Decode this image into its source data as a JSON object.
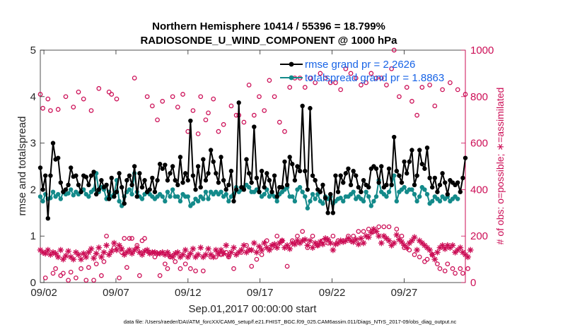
{
  "chart_data": {
    "type": "line",
    "title": "Northern Hemisphere 10414 / 55396 = 18.799%",
    "subtitle": "RADIOSONDE_U_WIND_COMPONENT @ 1000 hPa",
    "xlabel": "Sep.01,2017 00:00:00 start",
    "ylabel": "rmse and totalspread",
    "ylabel_right": "# of obs: o=possible; ∗=assimilated",
    "x_ticks": [
      "09/02",
      "09/07",
      "09/12",
      "09/17",
      "09/22",
      "09/27"
    ],
    "x_tick_days": [
      2,
      7,
      12,
      17,
      22,
      27
    ],
    "y_ticks": [
      "0",
      "1",
      "2",
      "3",
      "4",
      "5"
    ],
    "y_right_ticks": [
      "0",
      "200",
      "400",
      "600",
      "800",
      "1000"
    ],
    "xlim": [
      1.75,
      31.25
    ],
    "ylim": [
      0,
      5
    ],
    "ylim_right": [
      0,
      1000
    ],
    "footnote": "data file: /Users/raeder/DAI/ATM_forcXX/CAM6_setup/f.e21.FHIST_BGC.f09_025.CAM6assim.011/Diags_NTrS_2017-09/obs_diag_output.nc",
    "colors": {
      "rmse": "#000000",
      "spread": "#138a8a",
      "obs": "#cc0e56",
      "legend_text": "#1763e6",
      "axis": "#262626"
    },
    "series": [
      {
        "name": "rmse grand pr = 2.2626",
        "values": [
          2.47,
          2.0,
          2.3,
          1.38,
          2.3,
          3.0,
          2.65,
          2.68,
          2.15,
          1.95,
          2.0,
          2.1,
          2.47,
          2.28,
          2.3,
          2.1,
          1.95,
          2.3,
          2.27,
          2.1,
          2.3,
          2.38,
          1.9,
          2.0,
          2.2,
          2.05,
          2.1,
          1.8,
          2.25,
          1.85,
          1.95,
          2.35,
          2.05,
          1.7,
          2.2,
          2.3,
          2.1,
          2.5,
          1.85,
          2.35,
          2.05,
          2.2,
          1.95,
          2.0,
          2.25,
          1.95,
          2.2,
          2.55,
          2.45,
          2.53,
          2.2,
          2.35,
          2.5,
          2.2,
          2.1,
          2.7,
          2.15,
          2.35,
          2.2,
          3.48,
          2.3,
          2.0,
          2.5,
          2.05,
          2.65,
          2.2,
          2.35,
          2.85,
          2.6,
          2.35,
          2.15,
          2.7,
          2.2,
          2.0,
          2.1,
          2.4,
          1.75,
          2.0,
          3.87,
          2.05,
          2.0,
          2.65,
          2.35,
          2.15,
          3.35,
          2.25,
          1.95,
          2.4,
          2.05,
          2.35,
          2.2,
          1.95,
          2.3,
          1.85,
          2.05,
          2.05,
          2.6,
          2.1,
          2.7,
          2.55,
          2.2,
          2.5,
          2.4,
          3.8,
          2.4,
          2.0,
          3.75,
          2.3,
          2.2,
          2.0,
          1.95,
          2.1,
          1.82,
          1.5,
          1.9,
          1.5,
          2.3,
          1.95,
          2.3,
          2.15,
          2.35,
          2.45,
          2.1,
          2.4,
          2.3,
          2.05,
          1.95,
          2.2,
          2.1,
          2.05,
          2.45,
          2.5,
          2.45,
          2.15,
          2.5,
          2.05,
          2.1,
          2.45,
          2.1,
          3.13,
          2.4,
          2.3,
          2.15,
          2.6,
          2.35,
          2.6,
          2.85,
          2.1,
          2.3,
          2.85,
          2.55,
          2.45,
          2.9,
          2.25,
          2.05,
          2.25,
          1.95,
          2.1,
          2.35,
          2.15,
          1.9,
          2.2,
          2.15,
          2.1,
          2.15,
          1.95,
          2.25,
          2.68
        ],
        "color": "#000000"
      },
      {
        "name": "totalspread grand pr = 1.8863",
        "values": [
          1.85,
          1.75,
          1.9,
          1.8,
          1.82,
          1.95,
          1.85,
          1.9,
          1.8,
          1.95,
          1.9,
          1.92,
          2.0,
          1.88,
          1.95,
          1.9,
          1.95,
          2.0,
          1.9,
          1.85,
          1.95,
          2.0,
          2.35,
          1.95,
          2.05,
          2.0,
          1.8,
          1.95,
          1.85,
          1.9,
          2.2,
          1.75,
          1.65,
          1.85,
          1.95,
          2.0,
          1.9,
          2.35,
          1.95,
          1.85,
          1.8,
          1.9,
          1.95,
          1.9,
          1.85,
          1.8,
          1.85,
          1.9,
          1.85,
          1.75,
          1.95,
          1.85,
          2.0,
          1.85,
          1.85,
          1.75,
          1.9,
          1.85,
          1.85,
          1.65,
          1.7,
          1.8,
          1.75,
          1.85,
          1.8,
          1.95,
          1.8,
          1.95,
          1.9,
          1.95,
          1.9,
          1.95,
          1.85,
          1.9,
          1.75,
          1.85,
          1.9,
          2.05,
          1.95,
          2.0,
          2.05,
          2.1,
          2.05,
          1.95,
          1.95,
          2.0,
          1.95,
          1.85,
          1.9,
          2.0,
          1.85,
          1.9,
          1.85,
          1.75,
          1.9,
          1.95,
          2.0,
          2.05,
          1.85,
          1.85,
          1.75,
          2.0,
          2.05,
          1.95,
          1.85,
          1.6,
          1.75,
          1.9,
          1.8,
          1.9,
          1.75,
          1.7,
          1.85,
          1.8,
          1.85,
          1.7,
          1.75,
          1.8,
          1.82,
          1.75,
          1.85,
          1.85,
          1.9,
          1.95,
          1.8,
          1.85,
          1.8,
          1.75,
          1.95,
          1.85,
          1.65,
          1.75,
          1.85,
          2.2,
          1.95,
          1.9,
          1.85,
          1.95,
          2.1,
          2.3,
          1.75,
          1.95,
          2.0,
          2.05,
          1.95,
          2.0,
          2.0,
          1.9,
          1.75,
          1.85,
          2.05,
          2.0,
          1.9,
          1.7,
          1.75,
          1.85,
          1.8,
          1.75,
          1.85,
          1.8,
          1.85,
          1.75,
          1.8,
          1.85,
          1.8
        ],
        "color": "#138a8a"
      },
      {
        "name": "possible obs (o)",
        "values": [
          810,
          750,
          20,
          790,
          740,
          40,
          60,
          745,
          30,
          40,
          800,
          10,
          45,
          755,
          20,
          820,
          60,
          790,
          10,
          65,
          740,
          10,
          80,
          835,
          30,
          90,
          200,
          820,
          810,
          150,
          790,
          20,
          130,
          190,
          65,
          190,
          190,
          880,
          160,
          30,
          180,
          190,
          800,
          130,
          760,
          110,
          700,
          30,
          780,
          80,
          60,
          110,
          800,
          90,
          755,
          60,
          810,
          80,
          650,
          60,
          740,
          50,
          640,
          800,
          50,
          700,
          730,
          110,
          790,
          110,
          650,
          120,
          680,
          130,
          110,
          760,
          60,
          720,
          720,
          130,
          690,
          160,
          850,
          70,
          720,
          100,
          800,
          120,
          740,
          180,
          870,
          150,
          800,
          200,
          690,
          180,
          650,
          70,
          840,
          180,
          880,
          200,
          880,
          220,
          840,
          150,
          880,
          200,
          860,
          160,
          900,
          180,
          880,
          170,
          860,
          200,
          860,
          180,
          830,
          180,
          920,
          200,
          900,
          200,
          880,
          220,
          850,
          220,
          860,
          230,
          900,
          220,
          880,
          240,
          880,
          240,
          850,
          240,
          920,
          1000,
          230,
          800,
          200,
          150,
          840,
          140,
          780,
          120,
          720,
          110,
          840,
          90,
          100,
          850,
          120,
          760,
          80,
          60,
          830,
          50,
          80,
          860,
          60,
          40,
          830,
          60,
          40,
          810,
          60
        ],
        "color": "#cc0e56"
      },
      {
        "name": "assimilated obs (∗)",
        "values": [
          140,
          130,
          125,
          140,
          120,
          130,
          125,
          110,
          140,
          100,
          115,
          135,
          110,
          100,
          130,
          120,
          100,
          125,
          110,
          130,
          145,
          105,
          125,
          150,
          110,
          130,
          160,
          120,
          135,
          170,
          140,
          160,
          145,
          120,
          130,
          140,
          125,
          140,
          150,
          130,
          120,
          135,
          140,
          125,
          130,
          130,
          125,
          125,
          130,
          120,
          130,
          115,
          110,
          125,
          130,
          110,
          120,
          140,
          110,
          125,
          145,
          110,
          120,
          150,
          110,
          120,
          145,
          120,
          110,
          140,
          125,
          140,
          125,
          160,
          115,
          130,
          150,
          120,
          130,
          140,
          160,
          130,
          140,
          140,
          170,
          130,
          155,
          140,
          170,
          150,
          140,
          160,
          165,
          150,
          170,
          180,
          150,
          160,
          145,
          170,
          165,
          180,
          170,
          180,
          185,
          160,
          180,
          150,
          170,
          160,
          175,
          165,
          190,
          185,
          170,
          140,
          165,
          170,
          180,
          175,
          180,
          190,
          180,
          175,
          185,
          165,
          190,
          170,
          200,
          195,
          215,
          230,
          220,
          200,
          170,
          200,
          190,
          180,
          160,
          170,
          205,
          185,
          175,
          160,
          150,
          170,
          180,
          195,
          140,
          180,
          170,
          160,
          150,
          140,
          120,
          100,
          130,
          150,
          160,
          145,
          160,
          150,
          160,
          130,
          140,
          150,
          130,
          120,
          110,
          140
        ],
        "color": "#cc0e56"
      }
    ],
    "legend": [
      "rmse grand pr = 2.2626",
      "totalspread grand pr = 1.8863"
    ],
    "legend_position": "top-right"
  }
}
